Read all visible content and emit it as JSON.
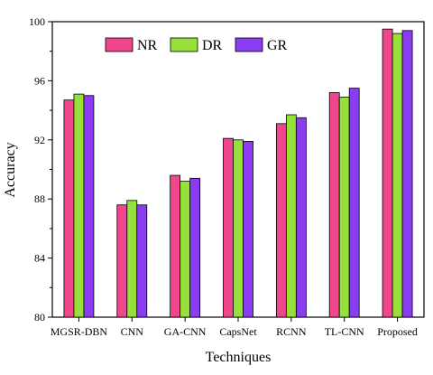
{
  "chart_data": {
    "type": "bar",
    "title": "",
    "xlabel": "Techniques",
    "ylabel": "Accuracy",
    "ylim": [
      80,
      100
    ],
    "yticks": [
      80,
      84,
      88,
      92,
      96,
      100
    ],
    "grid": false,
    "legend_position": "top-left",
    "categories": [
      "MGSR-DBN",
      "CNN",
      "GA-CNN",
      "CapsNet",
      "RCNN",
      "TL-CNN",
      "Proposed"
    ],
    "series": [
      {
        "name": "NR",
        "color": "#f0468e",
        "values": [
          94.7,
          87.6,
          89.6,
          92.1,
          93.1,
          95.2,
          99.5
        ]
      },
      {
        "name": "DR",
        "color": "#95e03a",
        "values": [
          95.1,
          87.9,
          89.2,
          92.0,
          93.7,
          94.9,
          99.2
        ]
      },
      {
        "name": "GR",
        "color": "#8a3df0",
        "values": [
          95.0,
          87.6,
          89.4,
          91.9,
          93.5,
          95.5,
          99.4
        ]
      }
    ]
  }
}
